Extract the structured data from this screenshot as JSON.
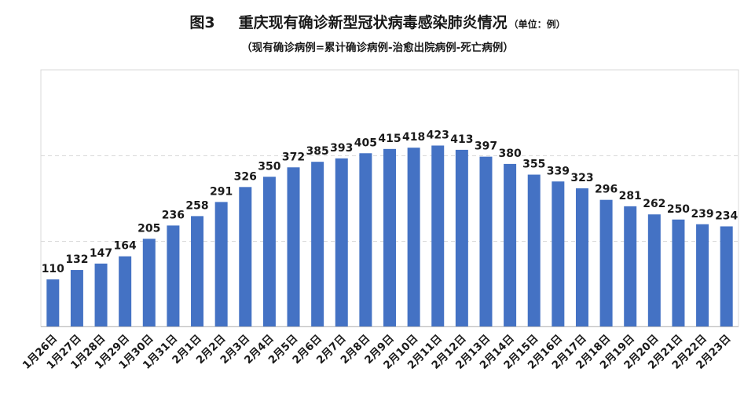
{
  "header": {
    "figure_label": "图3",
    "title": "重庆现有确诊新型冠状病毒感染肺炎情况",
    "unit": "（单位：例）",
    "subtitle": "（现有确诊病例=累计确诊病例-治愈出院病例-死亡病例）"
  },
  "colors": {
    "bar": "#4472C4",
    "grid": "#d9d9d9",
    "axis": "#bfbfbf",
    "frame": "#d9d9d9",
    "text": "#1a1a1a"
  },
  "chart_data": {
    "type": "bar",
    "title": "重庆现有确诊新型冠状病毒感染肺炎情况",
    "subtitle": "（现有确诊病例=累计确诊病例-治愈出院病例-死亡病例）",
    "unit": "例",
    "xlabel": "",
    "ylabel": "",
    "ylim": [
      0,
      600
    ],
    "grid": true,
    "grid_values": [
      200,
      400
    ],
    "legend": "none",
    "data_labels": true,
    "categories": [
      "1月26日",
      "1月27日",
      "1月28日",
      "1月29日",
      "1月30日",
      "1月31日",
      "2月1日",
      "2月2日",
      "2月3日",
      "2月4日",
      "2月5日",
      "2月6日",
      "2月7日",
      "2月8日",
      "2月9日",
      "2月10日",
      "2月11日",
      "2月12日",
      "2月13日",
      "2月14日",
      "2月15日",
      "2月16日",
      "2月17日",
      "2月18日",
      "2月19日",
      "2月20日",
      "2月21日",
      "2月22日",
      "2月23日"
    ],
    "values": [
      110,
      132,
      147,
      164,
      205,
      236,
      258,
      291,
      326,
      350,
      372,
      385,
      393,
      405,
      415,
      418,
      423,
      413,
      397,
      380,
      355,
      339,
      323,
      296,
      281,
      262,
      250,
      239,
      234
    ]
  }
}
